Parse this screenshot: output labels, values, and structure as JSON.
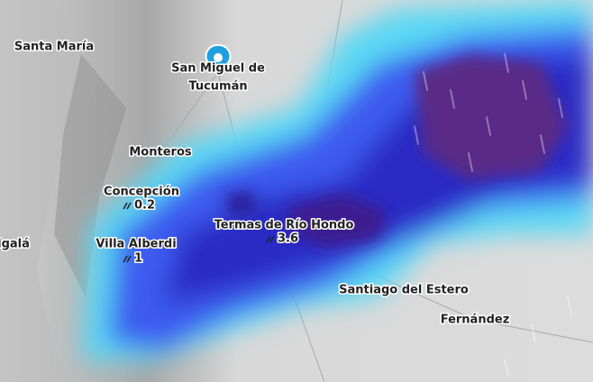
{
  "places": [
    {
      "label": "Santa María"
    },
    {
      "label": "San Miguel de"
    },
    {
      "label": "Tucumán"
    },
    {
      "label": "Monteros"
    },
    {
      "label": "Concepción"
    },
    {
      "label": "Villa Alberdi"
    },
    {
      "label": "Termas de Río Hondo"
    },
    {
      "label": "Santiago del Estero"
    },
    {
      "label": "Fernández"
    },
    {
      "label": "lgalá"
    }
  ],
  "rain": [
    {
      "value": 0.2
    },
    {
      "value": 1
    },
    {
      "value": 3.6
    }
  ]
}
